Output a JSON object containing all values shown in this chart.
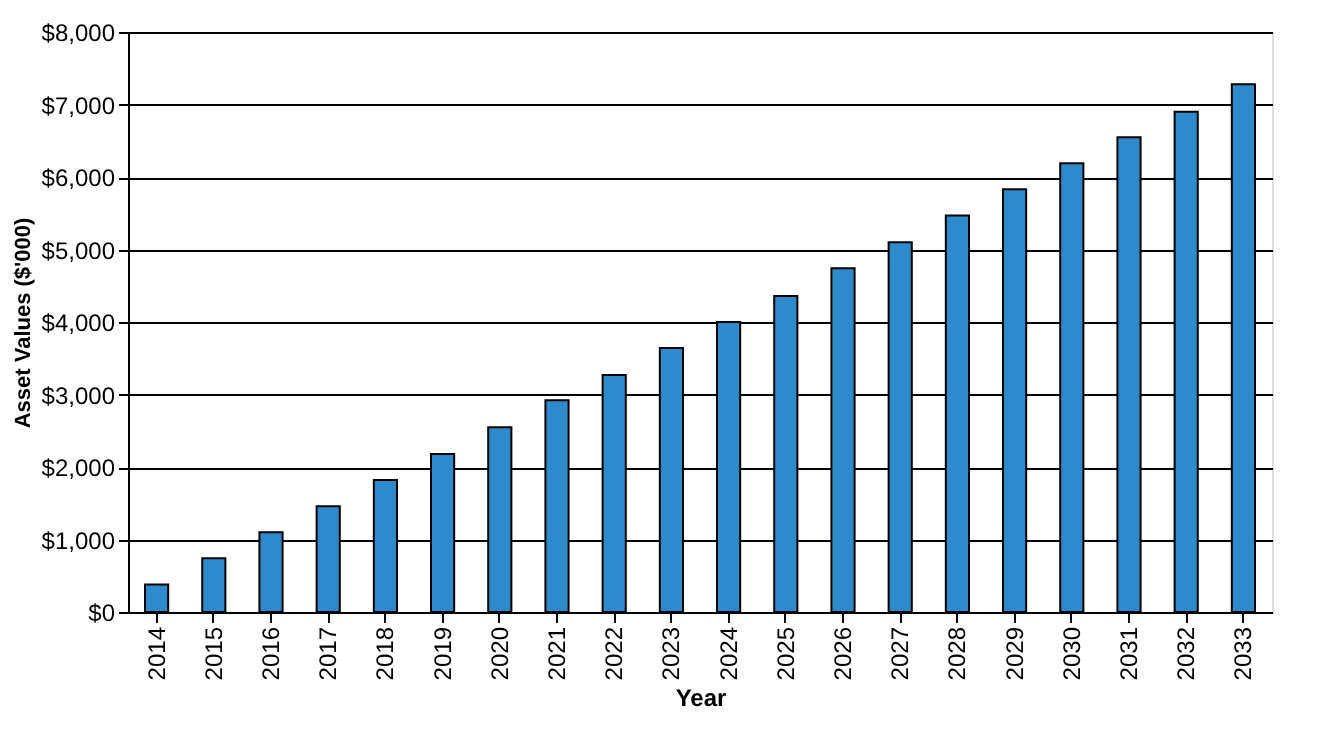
{
  "chart_data": {
    "type": "bar",
    "xlabel": "Year",
    "ylabel": "Asset Values ($'000)",
    "categories": [
      "2014",
      "2015",
      "2016",
      "2017",
      "2018",
      "2019",
      "2020",
      "2021",
      "2022",
      "2023",
      "2024",
      "2025",
      "2026",
      "2027",
      "2028",
      "2029",
      "2030",
      "2031",
      "2032",
      "2033"
    ],
    "values": [
      380,
      740,
      1100,
      1460,
      1820,
      2180,
      2550,
      2920,
      3270,
      3640,
      4000,
      4360,
      4740,
      5100,
      5470,
      5830,
      6190,
      6550,
      6900,
      7280
    ],
    "color": "#2e8bcb",
    "ylim": [
      0,
      8000
    ],
    "yticks": [
      {
        "value": 0,
        "label": "$0"
      },
      {
        "value": 1000,
        "label": "$1,000"
      },
      {
        "value": 2000,
        "label": "$2,000"
      },
      {
        "value": 3000,
        "label": "$3,000"
      },
      {
        "value": 4000,
        "label": "$4,000"
      },
      {
        "value": 5000,
        "label": "$5,000"
      },
      {
        "value": 6000,
        "label": "$6,000"
      },
      {
        "value": 7000,
        "label": "$7,000"
      },
      {
        "value": 8000,
        "label": "$8,000"
      }
    ],
    "grid": "y"
  }
}
